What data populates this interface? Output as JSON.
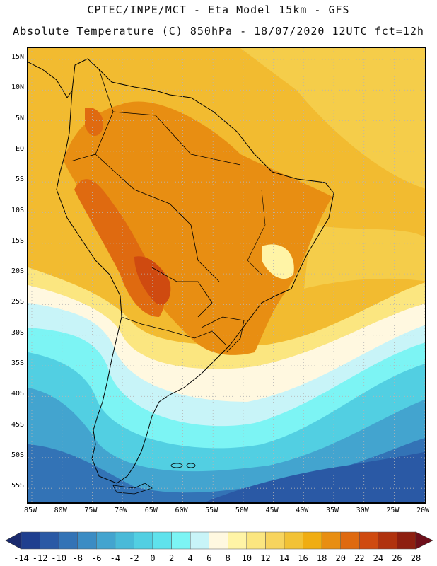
{
  "title_line1": "CPTEC/INPE/MCT -  Eta Model 15km - GFS",
  "title_line2": "Absolute Temperature (C) 850hPa - 18/07/2020 12UTC fct=12h",
  "lat_labels": [
    "15N",
    "10N",
    "5N",
    "EQ",
    "5S",
    "10S",
    "15S",
    "20S",
    "25S",
    "30S",
    "35S",
    "40S",
    "45S",
    "50S",
    "55S"
  ],
  "lon_labels": [
    "85W",
    "80W",
    "75W",
    "70W",
    "65W",
    "60W",
    "55W",
    "50W",
    "45W",
    "40W",
    "35W",
    "30W",
    "25W",
    "20W"
  ],
  "colorbar": {
    "labels": [
      "-14",
      "-12",
      "-10",
      "-8",
      "-6",
      "-4",
      "-2",
      "0",
      "2",
      "4",
      "6",
      "8",
      "10",
      "12",
      "14",
      "16",
      "18",
      "20",
      "22",
      "24",
      "26",
      "28"
    ],
    "under_color": "#1a2a6e",
    "over_color": "#6e0f1a",
    "colors": [
      "#1f3f8f",
      "#2a59a5",
      "#3373b6",
      "#3b8cc4",
      "#43a4cf",
      "#49bad8",
      "#52cfe2",
      "#5fe2ec",
      "#7cf4f4",
      "#c8f4f8",
      "#fff8e0",
      "#fff4a6",
      "#fbe680",
      "#f7d45e",
      "#f2c236",
      "#f0ad12",
      "#e88e12",
      "#df6a10",
      "#cf4a10",
      "#b0320e",
      "#8e1f10"
    ]
  },
  "map_colors": {
    "ocean_warm": "#f2bb30",
    "ocean_warm2": "#f5cd4a",
    "tropics": "#f0ad12",
    "land_hot": "#e88e12",
    "land_hotter": "#df6a10",
    "land_hottest": "#cf4a10",
    "mild": "#fbe680",
    "mild2": "#fff4a6",
    "cream": "#fff8e0",
    "pale": "#c8f4f8",
    "cyan": "#7cf4f4",
    "cyan2": "#52cfe2",
    "blue1": "#43a4cf",
    "blue2": "#3373b6",
    "blue3": "#2a59a5",
    "coast": "#000000",
    "grid": "#b5b5b5"
  }
}
